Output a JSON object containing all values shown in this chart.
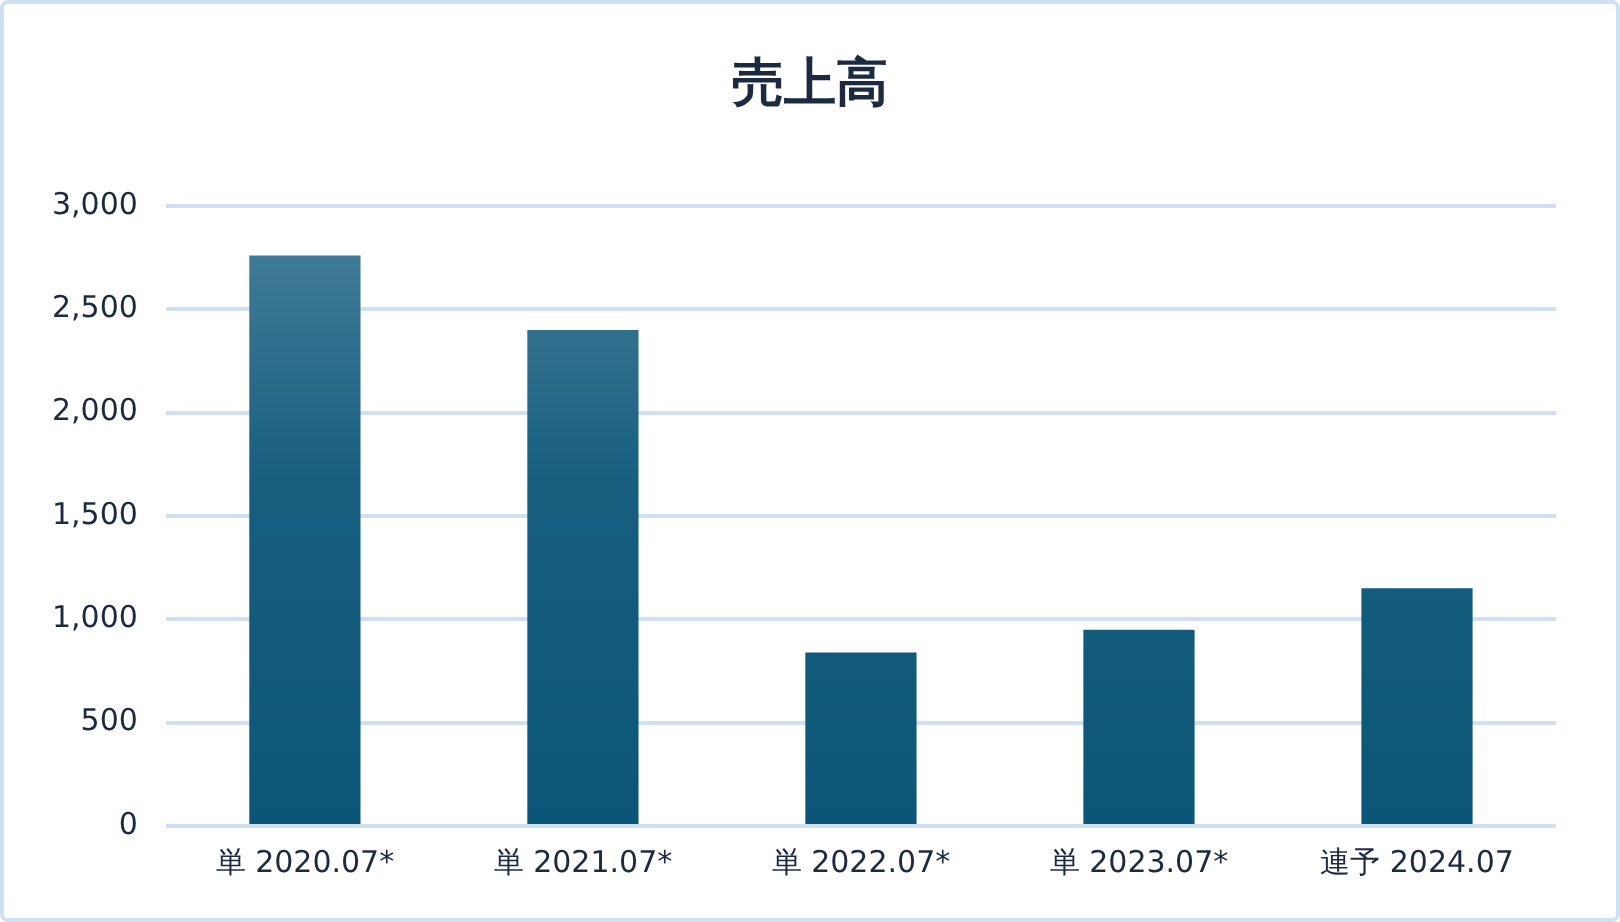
{
  "chart_data": {
    "type": "bar",
    "title": "売上高",
    "categories": [
      "単 2020.07*",
      "単 2021.07*",
      "単 2022.07*",
      "単 2023.07*",
      "連予 2024.07"
    ],
    "values": [
      2760,
      2400,
      840,
      950,
      1150
    ],
    "color": "#0b5678",
    "ylim": [
      0,
      3000
    ],
    "yticks": [
      {
        "value": 0,
        "label": "0"
      },
      {
        "value": 500,
        "label": "500"
      },
      {
        "value": 1000,
        "label": "1,000"
      },
      {
        "value": 1500,
        "label": "1,500"
      },
      {
        "value": 2000,
        "label": "2,000"
      },
      {
        "value": 2500,
        "label": "2,500"
      },
      {
        "value": 3000,
        "label": "3,000"
      }
    ],
    "grid": "y"
  }
}
